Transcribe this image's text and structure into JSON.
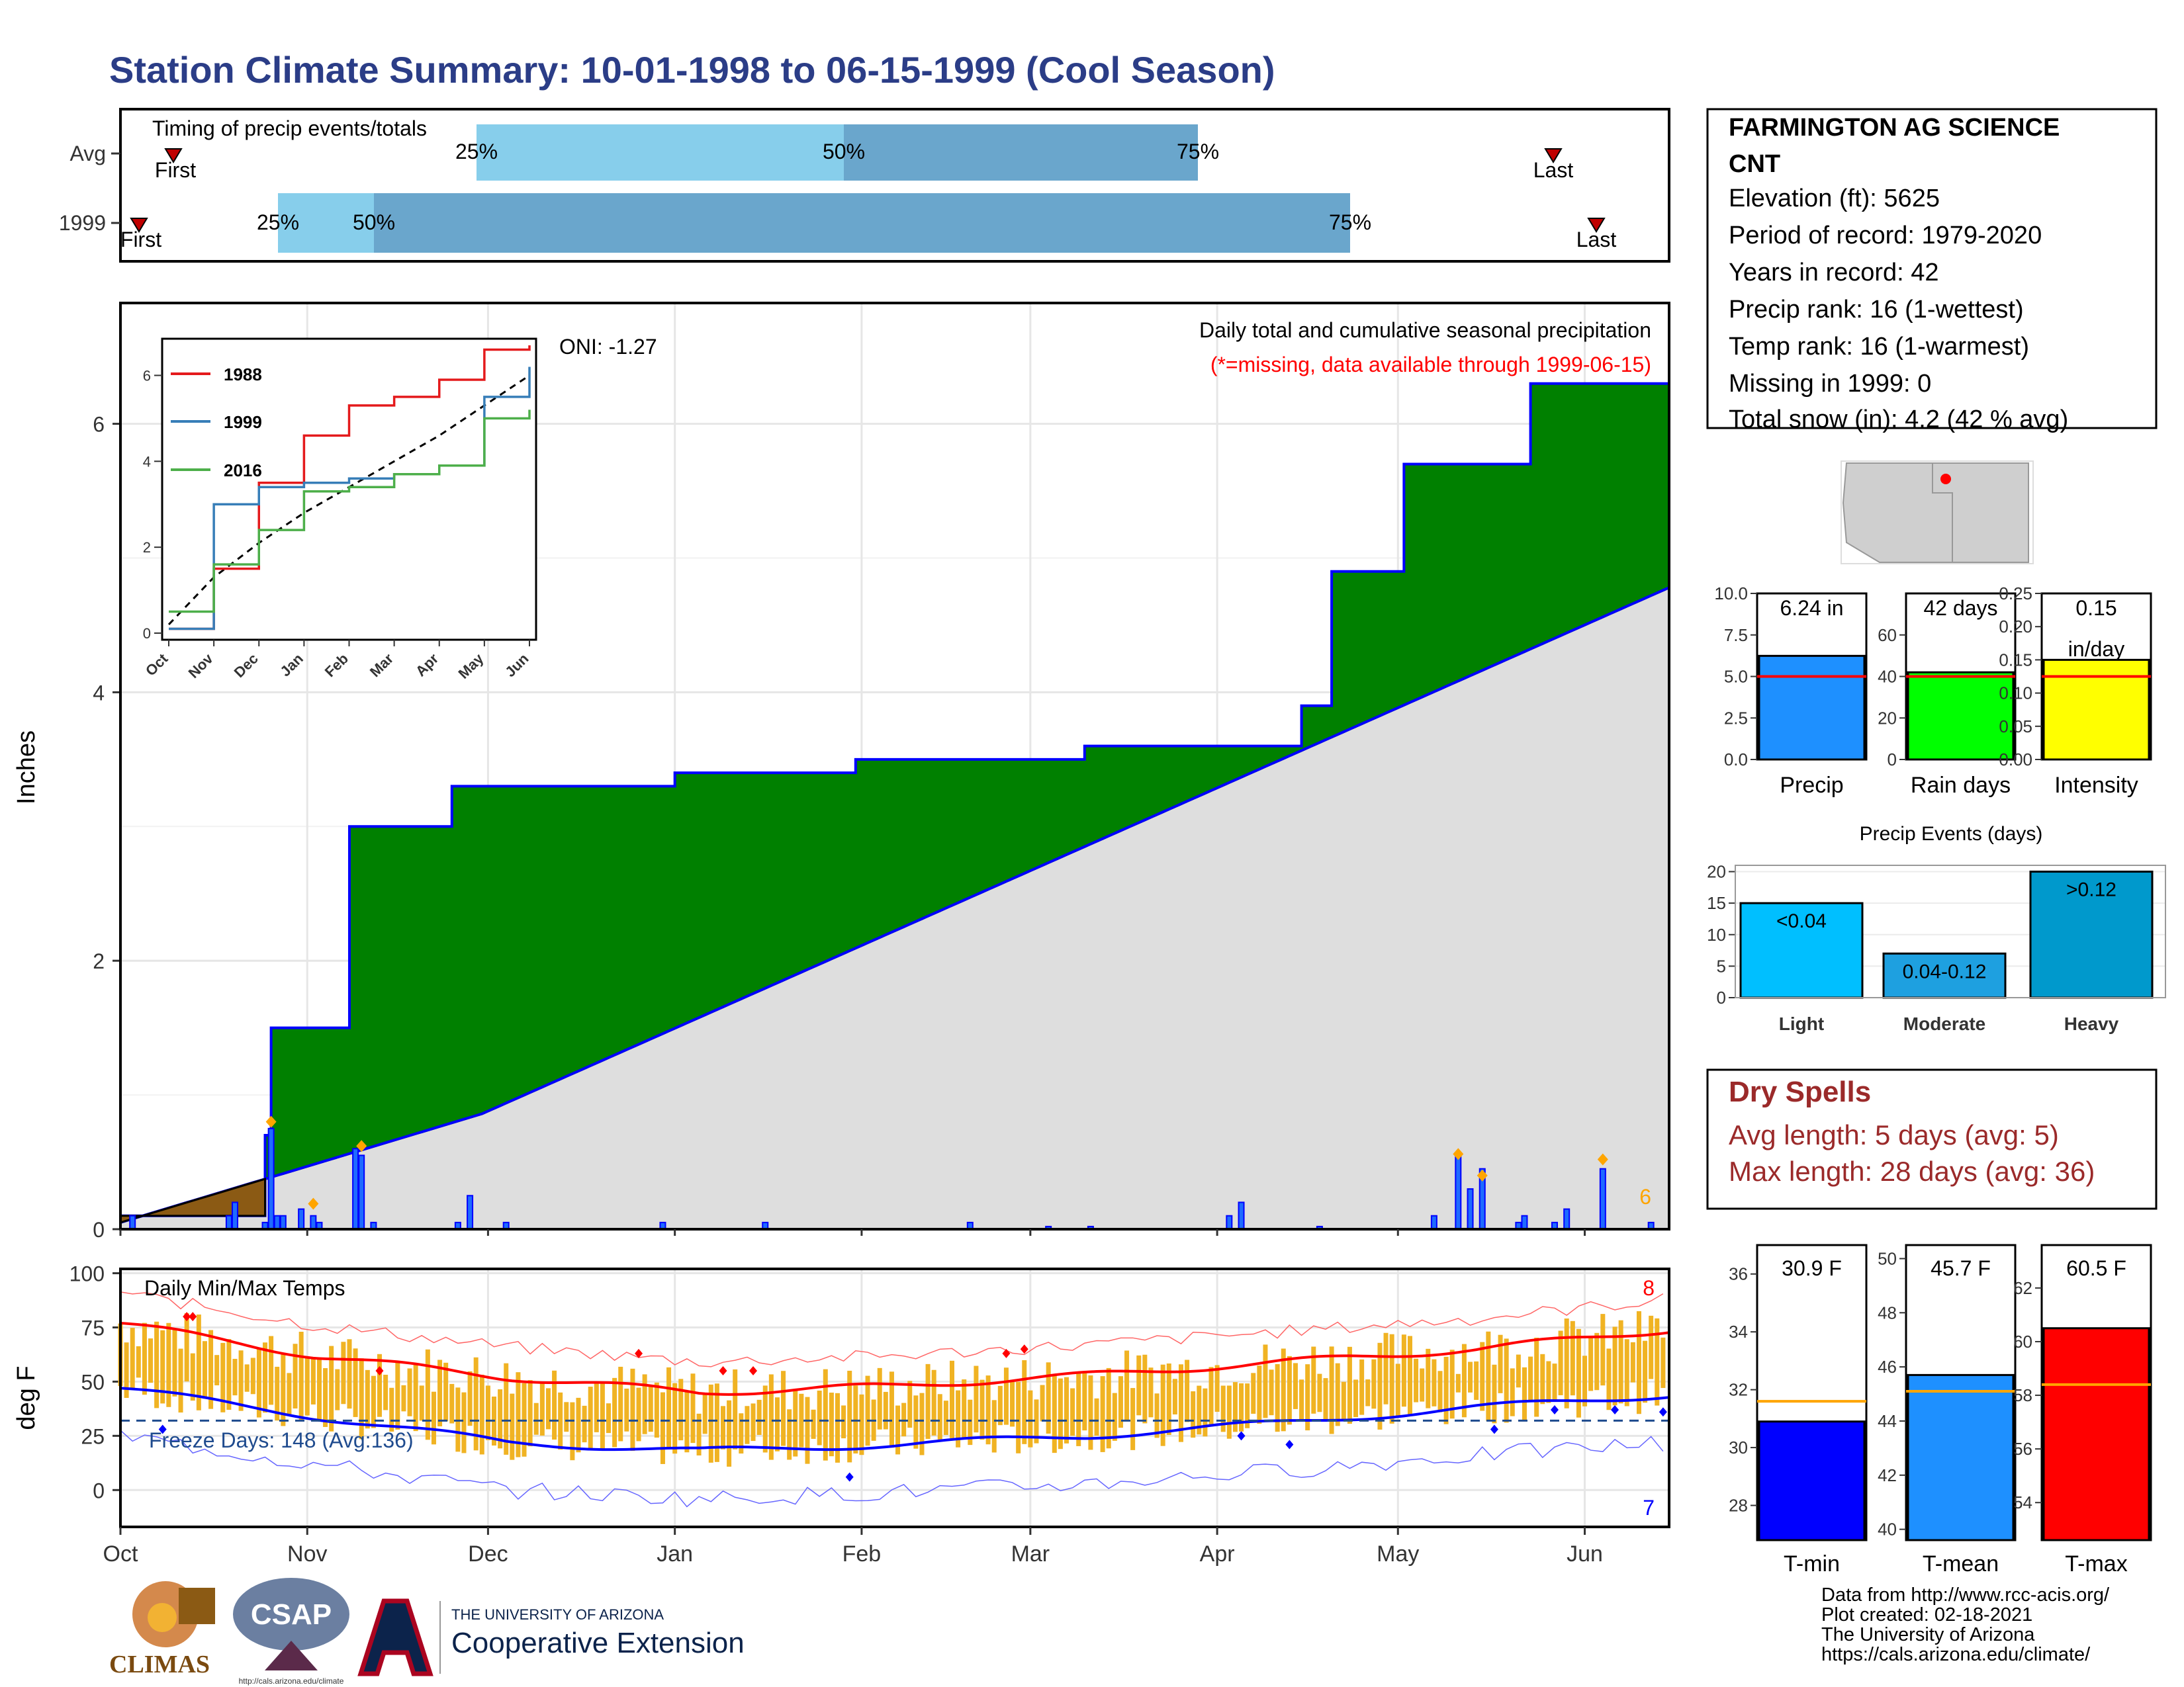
{
  "title": "Station Climate Summary: 10-01-1998 to 06-15-1999 (Cool Season)",
  "colors": {
    "title": "#2b3d87",
    "q1": "#87ceeb",
    "q2": "#6aa6cc",
    "cum": "#008000",
    "cum_line": "#0000ff",
    "clim": "#dedede",
    "early": "#8b5a14",
    "precip_bar": "#0000ff",
    "bar_fill": "#1e6bff",
    "temp_bar": "#f0b323",
    "tmax_line": "#ff0000",
    "tmin_line": "#0000ff",
    "dry": "#9b2a2a",
    "diamond": "#ffa500"
  },
  "timing": {
    "title": "Timing of precip events/totals",
    "rows": [
      {
        "label": "Avg",
        "first": "First",
        "last": "Last",
        "q25": "25%",
        "q50": "50%",
        "q75": "75%"
      },
      {
        "label": "1999",
        "first": "First",
        "last": "Last",
        "q25": "25%",
        "q50": "50%",
        "q75": "75%"
      }
    ]
  },
  "station": {
    "name_line1": "FARMINGTON AG SCIENCE",
    "name_line2": "CNT",
    "lines": [
      "Elevation (ft): 5625",
      "Period of record: 1979-2020",
      "Years in record: 42",
      "Precip rank: 16 (1-wettest)",
      "Temp rank: 16 (1-warmest)",
      "Missing in 1999: 0",
      "Total snow (in): 4.2 (42 % avg)"
    ]
  },
  "precip_panel": {
    "ylabel": "Inches",
    "oni": "ONI: -1.27",
    "caption": "Daily total and cumulative seasonal precipitation",
    "missing_note": "(*=missing, data available through 1999-06-15)",
    "count_label": "6"
  },
  "temp_panel": {
    "ylabel": "deg F",
    "title": "Daily Min/Max Temps",
    "freeze": "Freeze Days: 148 (Avg:136)",
    "count_top": "8",
    "count_bottom": "7"
  },
  "months": [
    "Oct",
    "Nov",
    "Dec",
    "Jan",
    "Feb",
    "Mar",
    "Apr",
    "May",
    "Jun"
  ],
  "inset": {
    "legend": [
      "1988",
      "1999",
      "2016"
    ]
  },
  "bars_top": [
    {
      "label": "Precip",
      "value_label": "6.24 in",
      "value": 6.24,
      "avg": 5.0,
      "ylim": [
        0,
        10
      ],
      "ticks": [
        "0.0",
        "2.5",
        "5.0",
        "7.5",
        "10.0"
      ]
    },
    {
      "label": "Rain days",
      "value_label": "42 days",
      "value": 42,
      "avg": 40,
      "ylim": [
        0,
        80
      ],
      "ticks": [
        "0",
        "20",
        "40",
        "60"
      ]
    },
    {
      "label": "Intensity",
      "value_label": "0.15",
      "value_label2": "in/day",
      "value": 0.15,
      "avg": 0.125,
      "ylim": [
        0,
        0.25
      ],
      "ticks": [
        "0.00",
        "0.05",
        "0.10",
        "0.15",
        "0.20",
        "0.25"
      ]
    }
  ],
  "events": {
    "title": "Precip Events (days)",
    "categories": [
      "Light",
      "Moderate",
      "Heavy"
    ],
    "labels": [
      "<0.04",
      "0.04-0.12",
      ">0.12"
    ],
    "values": [
      15,
      7,
      20
    ],
    "ticks": [
      "0",
      "5",
      "10",
      "15",
      "20"
    ]
  },
  "dry": {
    "title": "Dry Spells",
    "avg": "Avg length: 5 days (avg: 5)",
    "max": "Max length: 28 days (avg: 36)"
  },
  "temp_bars": [
    {
      "label": "T-min",
      "value_label": "30.9 F",
      "value": 30.9,
      "avg": 31.6,
      "ylim": [
        26.8,
        37
      ],
      "ticks": [
        "28",
        "30",
        "32",
        "34",
        "36"
      ]
    },
    {
      "label": "T-mean",
      "value_label": "45.7 F",
      "value": 45.7,
      "avg": 45.1,
      "ylim": [
        39.6,
        50.5
      ],
      "ticks": [
        "40",
        "42",
        "44",
        "46",
        "48",
        "50"
      ]
    },
    {
      "label": "T-max",
      "value_label": "60.5 F",
      "value": 60.5,
      "avg": 58.4,
      "ylim": [
        52.6,
        63.6
      ],
      "ticks": [
        "54",
        "56",
        "58",
        "60",
        "62"
      ]
    }
  ],
  "credits": [
    "Data from http://www.rcc-acis.org/",
    "Plot created: 02-18-2021",
    "The University of Arizona",
    "https://cals.arizona.edu/climate/"
  ],
  "logos": {
    "climas": "CLIMAS",
    "csap": "CSAP",
    "csap_url": "http://cals.arizona.edu/climate",
    "ua_line1": "THE UNIVERSITY OF ARIZONA",
    "ua_line2": "Cooperative Extension"
  },
  "chart_data": {
    "type": "area",
    "title": "Daily total and cumulative seasonal precipitation",
    "ylabel": "Inches",
    "ylim": [
      0,
      6.9
    ],
    "x_categories": [
      "Oct",
      "Nov",
      "Dec",
      "Jan",
      "Feb",
      "Mar",
      "Apr",
      "May",
      "Jun"
    ],
    "series": [
      {
        "name": "1999",
        "x": [
          "1998-10-01",
          "1998-10-25",
          "1998-10-26",
          "1998-11-08",
          "1998-11-25",
          "1999-01-01",
          "1999-01-31",
          "1999-03-10",
          "1999-04-15",
          "1999-04-20",
          "1999-05-02",
          "1999-05-23",
          "1999-06-15"
        ],
        "values": [
          0.1,
          0.7,
          1.5,
          3.0,
          3.3,
          3.4,
          3.5,
          3.6,
          3.9,
          4.9,
          5.7,
          6.3,
          6.3
        ]
      }
    ],
    "inset_series": [
      {
        "name": "1988",
        "x": [
          "Oct",
          "Nov",
          "Dec",
          "Jan",
          "Feb",
          "Mar",
          "Apr",
          "May",
          "Jun"
        ],
        "values": [
          0.1,
          1.5,
          3.5,
          4.6,
          5.3,
          5.5,
          5.9,
          6.6,
          6.7
        ]
      },
      {
        "name": "1999",
        "x": [
          "Oct",
          "Nov",
          "Dec",
          "Jan",
          "Feb",
          "Mar",
          "Apr",
          "May",
          "Jun"
        ],
        "values": [
          0.1,
          3.0,
          3.4,
          3.5,
          3.6,
          3.7,
          3.9,
          5.5,
          6.2
        ]
      },
      {
        "name": "2016",
        "x": [
          "Oct",
          "Nov",
          "Dec",
          "Jan",
          "Feb",
          "Mar",
          "Apr",
          "May",
          "Jun"
        ],
        "values": [
          0.5,
          1.6,
          2.4,
          3.3,
          3.4,
          3.7,
          3.9,
          5.0,
          5.2
        ]
      }
    ],
    "temperature": {
      "ylim": [
        -17,
        102
      ],
      "ticks": [
        0,
        25,
        50,
        75,
        100
      ],
      "freeze_line": 32,
      "tmax_avg": {
        "x": [
          "Oct",
          "Nov",
          "Dec",
          "Jan",
          "Feb",
          "Mar",
          "Apr",
          "May",
          "Jun"
        ],
        "values": [
          77,
          62,
          52,
          45,
          48,
          53,
          59,
          65,
          74
        ]
      },
      "tmin_avg": {
        "x": [
          "Oct",
          "Nov",
          "Dec",
          "Jan",
          "Feb",
          "Mar",
          "Apr",
          "May",
          "Jun"
        ],
        "values": [
          47,
          34,
          22,
          18,
          21,
          25,
          31,
          38,
          44
        ]
      }
    }
  }
}
